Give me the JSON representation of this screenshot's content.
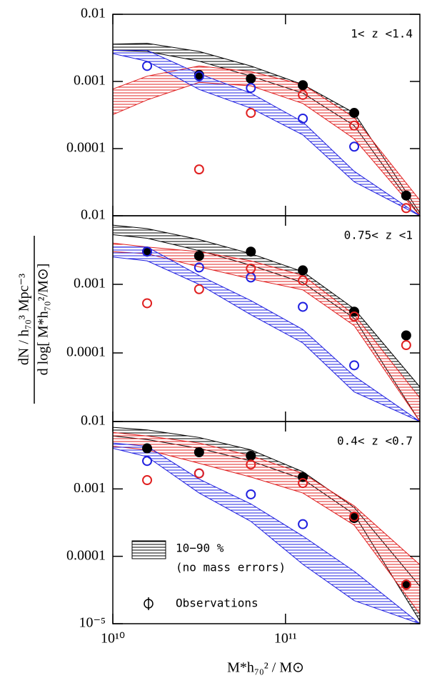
{
  "chart_data": [
    {
      "type": "scatter",
      "title": "1< z <1.4",
      "log_scale": true,
      "xlim": [
        10000000000.0,
        600000000000.0
      ],
      "ylim": [
        1e-05,
        0.01
      ],
      "yticks": [
        0.01,
        0.001,
        0.0001
      ],
      "x": [
        15800000000.0,
        31600000000.0,
        63000000000.0,
        126000000000.0,
        250000000000.0,
        500000000000.0
      ],
      "series": [
        {
          "color": "#000000",
          "filled": true,
          "values": [
            null,
            0.00125,
            0.0011,
            0.00088,
            0.00034,
            2e-05
          ]
        },
        {
          "color": "#2020e0",
          "filled": false,
          "values": [
            0.0017,
            0.0012,
            0.0008,
            0.00028,
            0.000107,
            null
          ]
        },
        {
          "color": "#e02020",
          "filled": false,
          "values": [
            null,
            4.9e-05,
            0.00034,
            0.00063,
            0.00022,
            1.3e-05
          ]
        }
      ],
      "band_x": [
        10000000000.0,
        15800000000.0,
        31600000000.0,
        63000000000.0,
        126000000000.0,
        250000000000.0,
        600000000000.0
      ],
      "bands": [
        {
          "color": "#000000",
          "upper": [
            0.0036,
            0.0037,
            0.0028,
            0.0017,
            0.0009,
            0.00034,
            1.1e-05
          ],
          "lower": [
            0.0029,
            0.0028,
            0.002,
            0.0012,
            0.00067,
            0.00022,
            1e-05
          ]
        },
        {
          "color": "#e02020",
          "upper": [
            0.00077,
            0.0012,
            0.0017,
            0.0014,
            0.0009,
            0.00029,
            1.7e-05
          ],
          "lower": [
            0.00032,
            0.00053,
            0.00097,
            0.00086,
            0.00047,
            0.00014,
            1e-05
          ]
        },
        {
          "color": "#2020e0",
          "upper": [
            0.0029,
            0.0029,
            0.0013,
            0.00067,
            0.00025,
            4.6e-05,
            1e-05
          ],
          "lower": [
            0.0026,
            0.002,
            0.00076,
            0.0004,
            0.00016,
            3.2e-05,
            1e-05
          ]
        }
      ]
    },
    {
      "type": "scatter",
      "title": "0.75< z <1",
      "log_scale": true,
      "ylabel_top": "dN / h₇₀³ Mpc⁻³",
      "ylabel_bottom": "d log[ M*h₇₀²/M⊙]",
      "xlim": [
        10000000000.0,
        600000000000.0
      ],
      "ylim": [
        1e-05,
        0.01
      ],
      "yticks": [
        0.01,
        0.001,
        0.0001
      ],
      "x": [
        15800000000.0,
        31600000000.0,
        63000000000.0,
        126000000000.0,
        250000000000.0,
        500000000000.0
      ],
      "series": [
        {
          "color": "#000000",
          "filled": true,
          "values": [
            0.003,
            0.0026,
            0.003,
            0.0016,
            0.0004,
            0.00018
          ]
        },
        {
          "color": "#2020e0",
          "filled": false,
          "values": [
            0.003,
            0.00176,
            0.00126,
            0.00047,
            6.6e-05,
            null
          ]
        },
        {
          "color": "#e02020",
          "filled": false,
          "values": [
            0.00053,
            0.00085,
            0.0017,
            0.00114,
            0.00034,
            0.00013
          ]
        }
      ],
      "band_x": [
        10000000000.0,
        15800000000.0,
        31600000000.0,
        63000000000.0,
        126000000000.0,
        250000000000.0,
        600000000000.0
      ],
      "bands": [
        {
          "color": "#000000",
          "upper": [
            0.0073,
            0.0065,
            0.0045,
            0.0028,
            0.00153,
            0.00044,
            3.2e-05
          ],
          "lower": [
            0.0053,
            0.0047,
            0.0031,
            0.0019,
            0.00106,
            0.00032,
            1e-05
          ]
        },
        {
          "color": "#e02020",
          "upper": [
            0.004,
            0.0035,
            0.003,
            0.0022,
            0.00135,
            0.00036,
            2.2e-05
          ],
          "lower": [
            0.003,
            0.0028,
            0.0018,
            0.0012,
            0.00083,
            0.00025,
            1e-05
          ]
        },
        {
          "color": "#2020e0",
          "upper": [
            0.0035,
            0.0035,
            0.00135,
            0.00058,
            0.00022,
            4.6e-05,
            1e-05
          ],
          "lower": [
            0.0025,
            0.0022,
            0.001,
            0.00036,
            0.00014,
            2.7e-05,
            1e-05
          ]
        }
      ]
    },
    {
      "type": "scatter",
      "title": "0.4< z <0.7",
      "log_scale": true,
      "xlabel": "M*h₇₀²  /  M⊙",
      "legend": [
        "10−90 %",
        "(no mass errors)",
        "Observations"
      ],
      "xlim": [
        10000000000.0,
        600000000000.0
      ],
      "ylim": [
        1e-05,
        0.01
      ],
      "xticks": [
        {
          "value": 10000000000.0,
          "label": "10¹⁰"
        },
        {
          "value": 100000000000.0,
          "label": "10¹¹"
        }
      ],
      "yticks": [
        0.01,
        0.001,
        0.0001,
        {
          "value": 1e-05,
          "label": "10⁻⁵"
        }
      ],
      "x": [
        15800000000.0,
        31600000000.0,
        63000000000.0,
        126000000000.0,
        250000000000.0,
        500000000000.0
      ],
      "series": [
        {
          "color": "#000000",
          "filled": true,
          "values": [
            0.004,
            0.0035,
            0.0031,
            0.0015,
            0.00037,
            3.8e-05
          ]
        },
        {
          "color": "#2020e0",
          "filled": false,
          "values": [
            0.0026,
            0.0017,
            0.00083,
            0.0003,
            null,
            null
          ]
        },
        {
          "color": "#e02020",
          "filled": false,
          "values": [
            0.00135,
            0.0017,
            0.0023,
            0.00122,
            0.00039,
            3.8e-05
          ]
        }
      ],
      "band_x": [
        10000000000.0,
        15800000000.0,
        31600000000.0,
        63000000000.0,
        126000000000.0,
        250000000000.0,
        600000000000.0
      ],
      "bands": [
        {
          "color": "#000000",
          "upper": [
            0.0082,
            0.0075,
            0.0058,
            0.0038,
            0.0018,
            0.00053,
            3.6e-05
          ],
          "lower": [
            0.0061,
            0.0054,
            0.004,
            0.0026,
            0.0014,
            0.00042,
            1.1e-05
          ]
        },
        {
          "color": "#e02020",
          "upper": [
            0.0069,
            0.0061,
            0.0048,
            0.0031,
            0.0017,
            0.00056,
            7.5e-05
          ],
          "lower": [
            0.0043,
            0.0038,
            0.0024,
            0.0015,
            0.00087,
            0.00029,
            1.4e-05
          ]
        },
        {
          "color": "#2020e0",
          "upper": [
            0.0048,
            0.0043,
            0.0014,
            0.0006,
            0.0002,
            6e-05,
            1e-05
          ],
          "lower": [
            0.004,
            0.003,
            0.00087,
            0.00033,
            7.6e-05,
            2.2e-05,
            1e-05
          ]
        }
      ]
    }
  ]
}
